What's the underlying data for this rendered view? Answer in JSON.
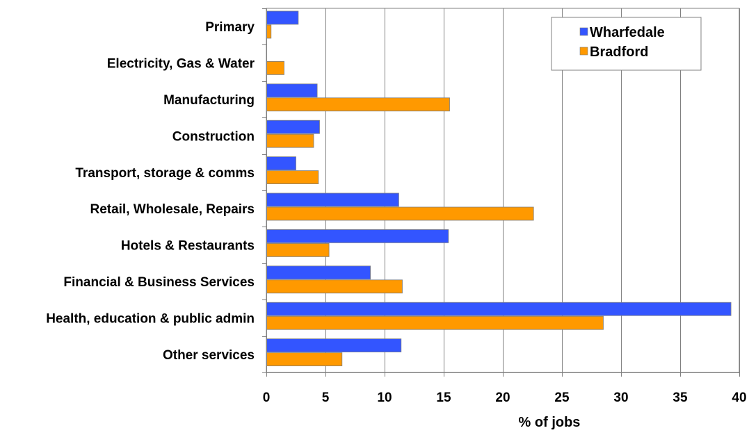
{
  "chart_data": {
    "type": "bar",
    "orientation": "horizontal",
    "title": "",
    "xlabel": "% of jobs",
    "ylabel": "",
    "xlim": [
      0,
      40
    ],
    "xticks": [
      0,
      5,
      10,
      15,
      20,
      25,
      30,
      35,
      40
    ],
    "xtick_labels": [
      "0",
      "5",
      "10",
      "15",
      "20",
      "25",
      "30",
      "35",
      "40"
    ],
    "grid": "vertical",
    "legend_position": "top-right",
    "categories": [
      "Primary",
      "Electricity, Gas & Water",
      "Manufacturing",
      "Construction",
      "Transport, storage & comms",
      "Retail, Wholesale, Repairs",
      "Hotels & Restaurants",
      "Financial & Business Services",
      "Health, education & public admin",
      "Other services"
    ],
    "series": [
      {
        "name": "Wharfedale",
        "color": "#3355ff",
        "values": [
          2.7,
          0.0,
          4.3,
          4.5,
          2.5,
          11.2,
          15.4,
          8.8,
          39.3,
          11.4
        ]
      },
      {
        "name": "Bradford",
        "color": "#ff9900",
        "values": [
          0.4,
          1.5,
          15.5,
          4.0,
          4.4,
          22.6,
          5.3,
          11.5,
          28.5,
          6.4
        ]
      }
    ]
  }
}
